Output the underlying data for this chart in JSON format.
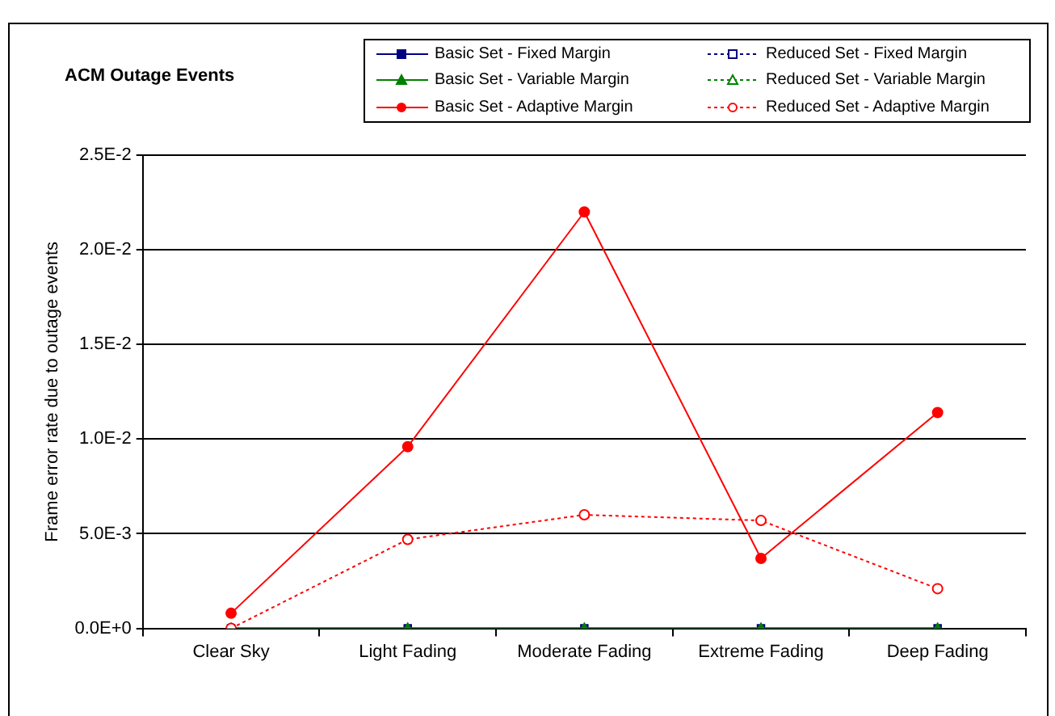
{
  "chart_data": {
    "type": "line",
    "title": "ACM Outage Events",
    "ylabel": "Frame error rate due to outage events",
    "categories": [
      "Clear Sky",
      "Light Fading",
      "Moderate Fading",
      "Extreme Fading",
      "Deep Fading"
    ],
    "series": [
      {
        "name": "Basic Set - Fixed Margin",
        "color": "#000080",
        "marker": "square",
        "line_style": "solid",
        "values": [
          0,
          0,
          0,
          0,
          0
        ]
      },
      {
        "name": "Basic Set - Variable Margin",
        "color": "#008000",
        "marker": "triangle",
        "line_style": "solid",
        "values": [
          0,
          0,
          0,
          0,
          0
        ]
      },
      {
        "name": "Basic Set - Adaptive Margin",
        "color": "#ff0000",
        "marker": "circle",
        "line_style": "solid",
        "values": [
          0.0008,
          0.0096,
          0.022,
          0.0037,
          0.0114
        ]
      },
      {
        "name": "Reduced Set - Fixed Margin",
        "color": "#000080",
        "marker": "square",
        "line_style": "dotted",
        "values": [
          null,
          null,
          null,
          null,
          null
        ]
      },
      {
        "name": "Reduced Set - Variable Margin",
        "color": "#008000",
        "marker": "triangle",
        "line_style": "dotted",
        "values": [
          null,
          null,
          null,
          null,
          null
        ]
      },
      {
        "name": "Reduced Set - Adaptive Margin",
        "color": "#ff0000",
        "marker": "circle",
        "line_style": "dotted",
        "values": [
          0,
          0.0047,
          0.006,
          0.0057,
          0.0021
        ]
      }
    ],
    "ylim": [
      0,
      0.025
    ],
    "yticks": [
      {
        "value": 0,
        "label": "0.0E+0"
      },
      {
        "value": 0.005,
        "label": "5.0E-3"
      },
      {
        "value": 0.01,
        "label": "1.0E-2"
      },
      {
        "value": 0.015,
        "label": "1.5E-2"
      },
      {
        "value": 0.02,
        "label": "2.0E-2"
      },
      {
        "value": 0.025,
        "label": "2.5E-2"
      }
    ],
    "grid": "y",
    "legend": "top right"
  }
}
